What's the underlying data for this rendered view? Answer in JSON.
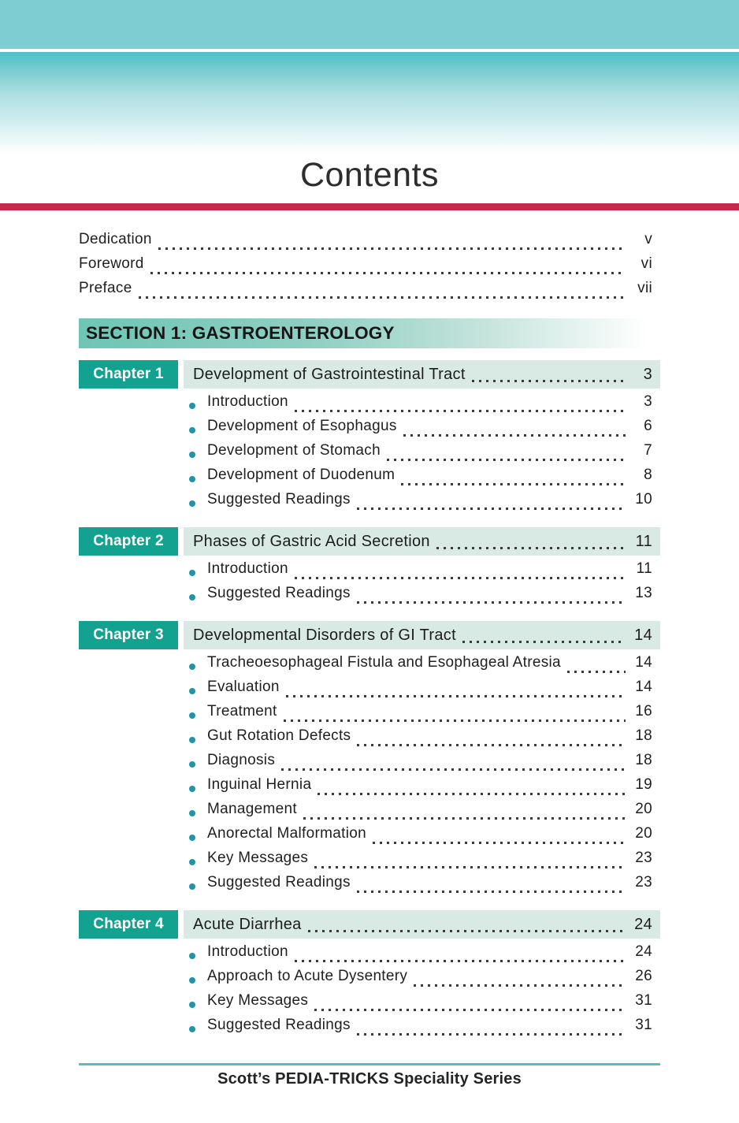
{
  "page": {
    "title": "Contents",
    "footer_text": "Scott’s PEDIA-TRICKS Speciality Series"
  },
  "colors": {
    "top_bar_teal": "#7ECDD3",
    "hero_gradient_teal": "#4EC0C6",
    "red_bar": "#C5294A",
    "section_banner_teal": "#6FC5B4",
    "chapter_badge_teal": "#12A28F",
    "chapter_strip_mint": "#D9EAE5",
    "bullet_teal": "#1E95A8",
    "footer_line_teal": "#56BFC4"
  },
  "front_matter": [
    {
      "label": "Dedication",
      "page": "v"
    },
    {
      "label": "Foreword",
      "page": "vi"
    },
    {
      "label": "Preface",
      "page": "vii"
    }
  ],
  "section": {
    "title": "SECTION 1: GASTROENTEROLOGY"
  },
  "chapters": [
    {
      "badge": "Chapter 1",
      "title": "Development of Gastrointestinal Tract",
      "page": "3",
      "items": [
        {
          "label": "Introduction",
          "page": "3"
        },
        {
          "label": "Development of Esophagus",
          "page": "6"
        },
        {
          "label": "Development of Stomach",
          "page": "7"
        },
        {
          "label": "Development of Duodenum",
          "page": "8"
        },
        {
          "label": "Suggested Readings",
          "page": "10"
        }
      ]
    },
    {
      "badge": "Chapter 2",
      "title": "Phases of Gastric Acid Secretion",
      "page": "11",
      "items": [
        {
          "label": "Introduction",
          "page": "11"
        },
        {
          "label": "Suggested Readings",
          "page": "13"
        }
      ]
    },
    {
      "badge": "Chapter 3",
      "title": "Developmental Disorders of GI Tract",
      "page": "14",
      "items": [
        {
          "label": "Tracheoesophageal Fistula and Esophageal Atresia",
          "page": "14"
        },
        {
          "label": "Evaluation",
          "page": "14"
        },
        {
          "label": "Treatment",
          "page": "16"
        },
        {
          "label": "Gut Rotation Defects",
          "page": "18"
        },
        {
          "label": "Diagnosis",
          "page": "18"
        },
        {
          "label": "Inguinal Hernia",
          "page": "19"
        },
        {
          "label": "Management",
          "page": "20"
        },
        {
          "label": "Anorectal Malformation",
          "page": "20"
        },
        {
          "label": "Key Messages",
          "page": "23"
        },
        {
          "label": "Suggested Readings",
          "page": "23"
        }
      ]
    },
    {
      "badge": "Chapter 4",
      "title": "Acute Diarrhea",
      "page": "24",
      "items": [
        {
          "label": "Introduction",
          "page": "24"
        },
        {
          "label": "Approach to Acute Dysentery",
          "page": "26"
        },
        {
          "label": "Key Messages",
          "page": "31"
        },
        {
          "label": "Suggested Readings",
          "page": "31"
        }
      ]
    }
  ]
}
